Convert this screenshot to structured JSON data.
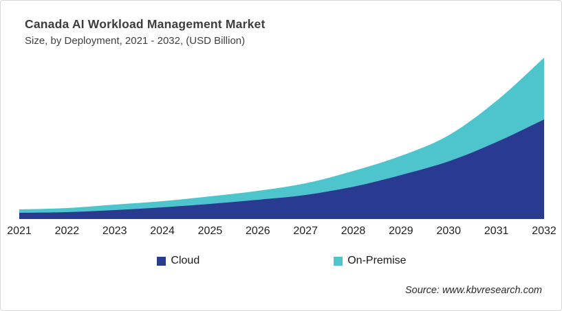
{
  "header": {
    "title": "Canada AI Workload Management Market",
    "subtitle": "Size, by Deployment, 2021 - 2032, (USD Billion)"
  },
  "footer": {
    "source": "Source: www.kbvresearch.com"
  },
  "colors": {
    "cloud": "#293a91",
    "on_premise": "#4ec5cc",
    "card_border": "#d6d6d6",
    "title_text": "#3d3d3d",
    "axis_text": "#1f1f1f"
  },
  "chart_data": {
    "type": "area",
    "stacked": true,
    "title": "Canada AI Workload Management Market",
    "subtitle": "Size, by Deployment, 2021 - 2032, (USD Billion)",
    "categories": [
      "2021",
      "2022",
      "2023",
      "2024",
      "2025",
      "2026",
      "2027",
      "2028",
      "2029",
      "2030",
      "2031",
      "2032"
    ],
    "series": [
      {
        "name": "Cloud",
        "color": "#293a91",
        "values": [
          9,
          10,
          13,
          17,
          22,
          28,
          35,
          47,
          64,
          84,
          112,
          145
        ]
      },
      {
        "name": "On-Premise",
        "color": "#4ec5cc",
        "values": [
          5,
          6,
          8,
          9,
          11,
          13,
          17,
          23,
          28,
          38,
          60,
          90
        ]
      }
    ],
    "xlabel": "",
    "ylabel": "",
    "ylim": [
      0,
      235
    ],
    "y_axis_visible": false,
    "grid": false,
    "legend_position": "bottom"
  }
}
